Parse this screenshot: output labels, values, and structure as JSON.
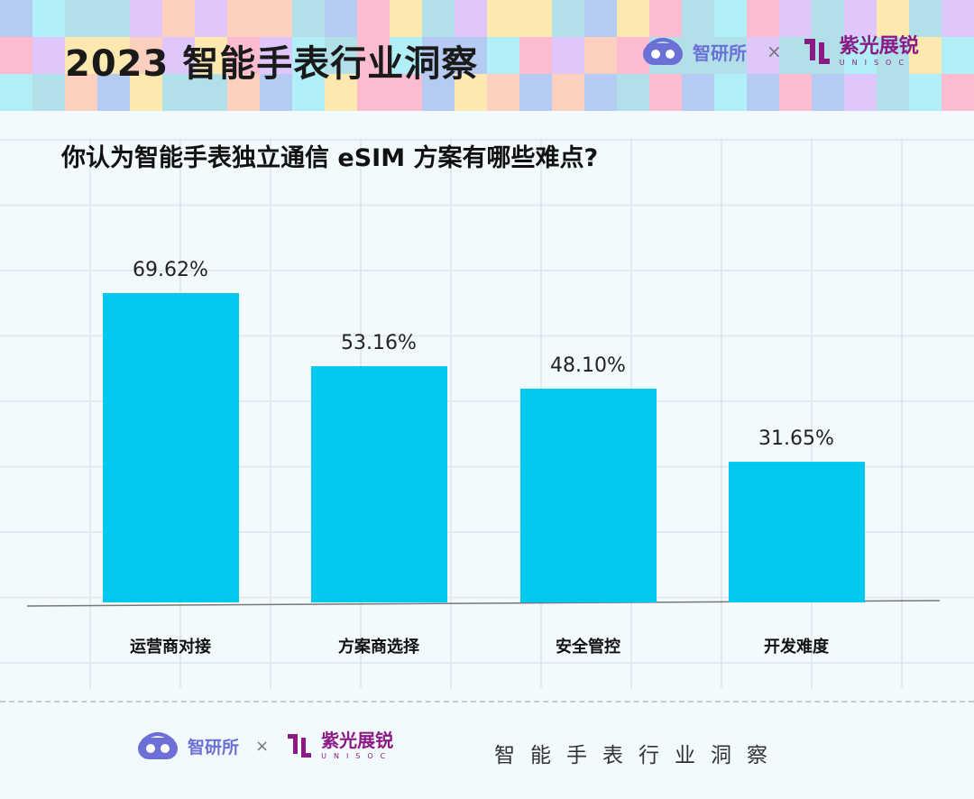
{
  "header": {
    "title": "2023 智能手表行业洞察",
    "logo_zhiyan": "智研所",
    "times": "×",
    "logo_unisoc": "紫光展锐",
    "logo_unisoc_sub": "UNISOC"
  },
  "colors": {
    "bar": "#00c8ee",
    "tiles": [
      "#fde9b0",
      "#fccfbf",
      "#dfc6fb",
      "#b2e0e8",
      "#fcbcd0",
      "#b5cbf3",
      "#b2eef8"
    ]
  },
  "chart_data": {
    "type": "bar",
    "title": "你认为智能手表独立通信 eSIM 方案有哪些难点?",
    "categories": [
      "运营商对接",
      "方案商选择",
      "安全管控",
      "开发难度"
    ],
    "values": [
      69.62,
      53.16,
      48.1,
      31.65
    ],
    "labels": [
      "69.62%",
      "53.16%",
      "48.10%",
      "31.65%"
    ],
    "ylim": [
      0,
      75
    ],
    "grid": true
  },
  "footer": {
    "logo_zhiyan": "智研所",
    "times": "×",
    "logo_unisoc": "紫光展锐",
    "logo_unisoc_sub": "UNISOC",
    "title": "智能手表行业洞察"
  }
}
